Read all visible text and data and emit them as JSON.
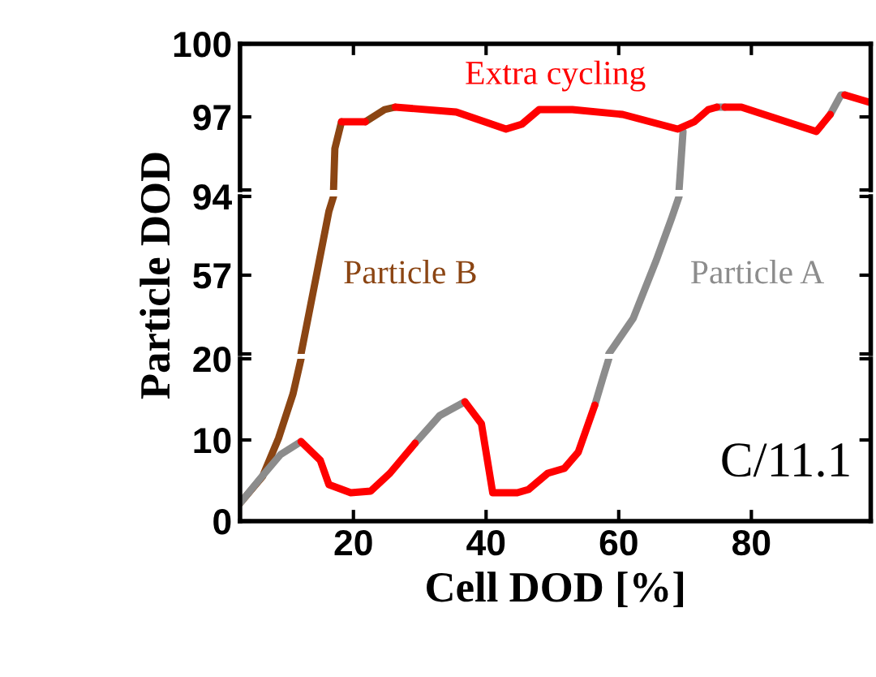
{
  "chart_data": [
    {
      "type": "line",
      "xlim": [
        2.9,
        98
      ],
      "ylim": [
        94,
        100
      ],
      "xticks": [
        20,
        40,
        60,
        80
      ],
      "yticks": [
        {
          "value": 94,
          "label": null
        },
        97,
        100
      ],
      "tick_labels": "y",
      "grid": false,
      "legend": false,
      "marker": "none",
      "line_style": "solid",
      "series": [
        {
          "color": "#8b4513",
          "x": [
            17,
            17.2,
            18.2,
            null,
            21.8,
            24.7,
            26.3
          ],
          "values": [
            94,
            95.7,
            96.8,
            null,
            96.8,
            97.3,
            97.4
          ]
        },
        {
          "color": "#8c8c8c",
          "x": [
            69.1,
            69.7,
            null,
            74.8,
            76,
            null,
            91.9,
            93.5,
            94.1
          ],
          "values": [
            94,
            96.4,
            null,
            97.4,
            97.4,
            null,
            97.1,
            97.9,
            97.9
          ]
        },
        {
          "name": "Extra cycling",
          "color": "#ff0000",
          "x": [
            18.2,
            21.8,
            null,
            26.3,
            35.5,
            43,
            45.4,
            48,
            53,
            60.6,
            68.9,
            71.4,
            73.5,
            74.8,
            null,
            76,
            78.5,
            89.8,
            91.9,
            null,
            94.1,
            97.8
          ],
          "values": [
            96.8,
            96.8,
            null,
            97.4,
            97.2,
            96.5,
            96.7,
            97.3,
            97.3,
            97.1,
            96.5,
            96.8,
            97.3,
            97.4,
            null,
            97.4,
            97.4,
            96.4,
            97.1,
            null,
            97.9,
            97.6
          ]
        }
      ]
    },
    {
      "type": "line",
      "xlim": [
        2.9,
        98
      ],
      "ylim": [
        20,
        94
      ],
      "yticks": [
        {
          "value": 20,
          "label": null
        },
        57,
        94
      ],
      "tick_labels": "y",
      "grid": false,
      "legend": false,
      "marker": "none",
      "line_style": "solid",
      "ylabel": "Particle DOD",
      "series": [
        {
          "name": "Particle B",
          "color": "#8b4513",
          "x": [
            12.1,
            14.3,
            16.3,
            17
          ],
          "values": [
            20,
            55,
            87,
            94
          ]
        },
        {
          "name": "Particle A",
          "color": "#8c8c8c",
          "x": [
            58.5,
            62.2,
            65.6,
            68,
            69.1
          ],
          "values": [
            20,
            36.8,
            63.5,
            84,
            94
          ]
        }
      ]
    },
    {
      "type": "line",
      "xlim": [
        2.9,
        98
      ],
      "ylim": [
        0,
        20
      ],
      "xticks": [
        20,
        40,
        60,
        80
      ],
      "yticks": [
        0,
        10,
        20
      ],
      "grid": false,
      "legend": false,
      "marker": "none",
      "line_style": "solid",
      "xlabel": "Cell DOD [%]",
      "annotations": [
        "C/11.1"
      ],
      "series": [
        {
          "color": "#8b4513",
          "x": [
            2.9,
            6.3,
            8.7,
            10.9,
            12.1
          ],
          "values": [
            2.2,
            5.5,
            10.2,
            15.7,
            20
          ]
        },
        {
          "color": "#8c8c8c",
          "x": [
            2.9,
            6,
            9,
            12.1,
            null,
            29.3,
            33,
            36.8,
            null,
            56.4,
            57.6,
            58.5
          ],
          "values": [
            2.2,
            5.3,
            8.2,
            9.8,
            null,
            9.6,
            13,
            14.7,
            null,
            14.3,
            17.6,
            20
          ]
        },
        {
          "color": "#ff0000",
          "x": [
            12.1,
            15,
            16.3,
            19.6,
            22.6,
            25.5,
            29.3,
            null,
            36.8,
            39.3,
            41,
            44.7,
            46.4,
            49.3,
            51.8,
            53.9,
            56.4
          ],
          "values": [
            9.8,
            7.5,
            4.5,
            3.5,
            3.7,
            5.9,
            9.6,
            null,
            14.7,
            12,
            3.5,
            3.5,
            3.9,
            5.9,
            6.5,
            8.5,
            14.3
          ]
        }
      ]
    }
  ]
}
